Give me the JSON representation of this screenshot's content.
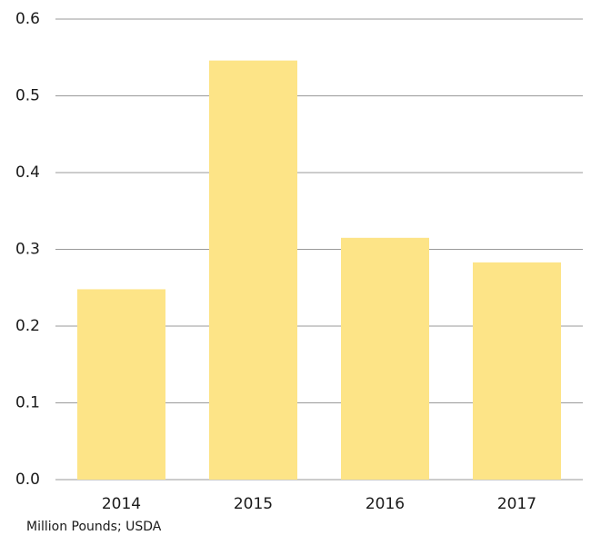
{
  "footer": {
    "source": "Million Pounds; USDA"
  },
  "colors": {
    "bar": "#fde487",
    "gridline": "#9a9a9a",
    "text": "#1a1a1a",
    "background": "#ffffff"
  },
  "chart_data": {
    "type": "bar",
    "title": "",
    "xlabel": "",
    "ylabel": "",
    "categories": [
      "2014",
      "2015",
      "2016",
      "2017"
    ],
    "values": [
      0.248,
      0.546,
      0.315,
      0.283
    ],
    "ylim": [
      0,
      0.6
    ],
    "yticks": [
      "0.0",
      "0.1",
      "0.2",
      "0.3",
      "0.4",
      "0.5",
      "0.6"
    ],
    "grid": true,
    "legend": "none"
  }
}
